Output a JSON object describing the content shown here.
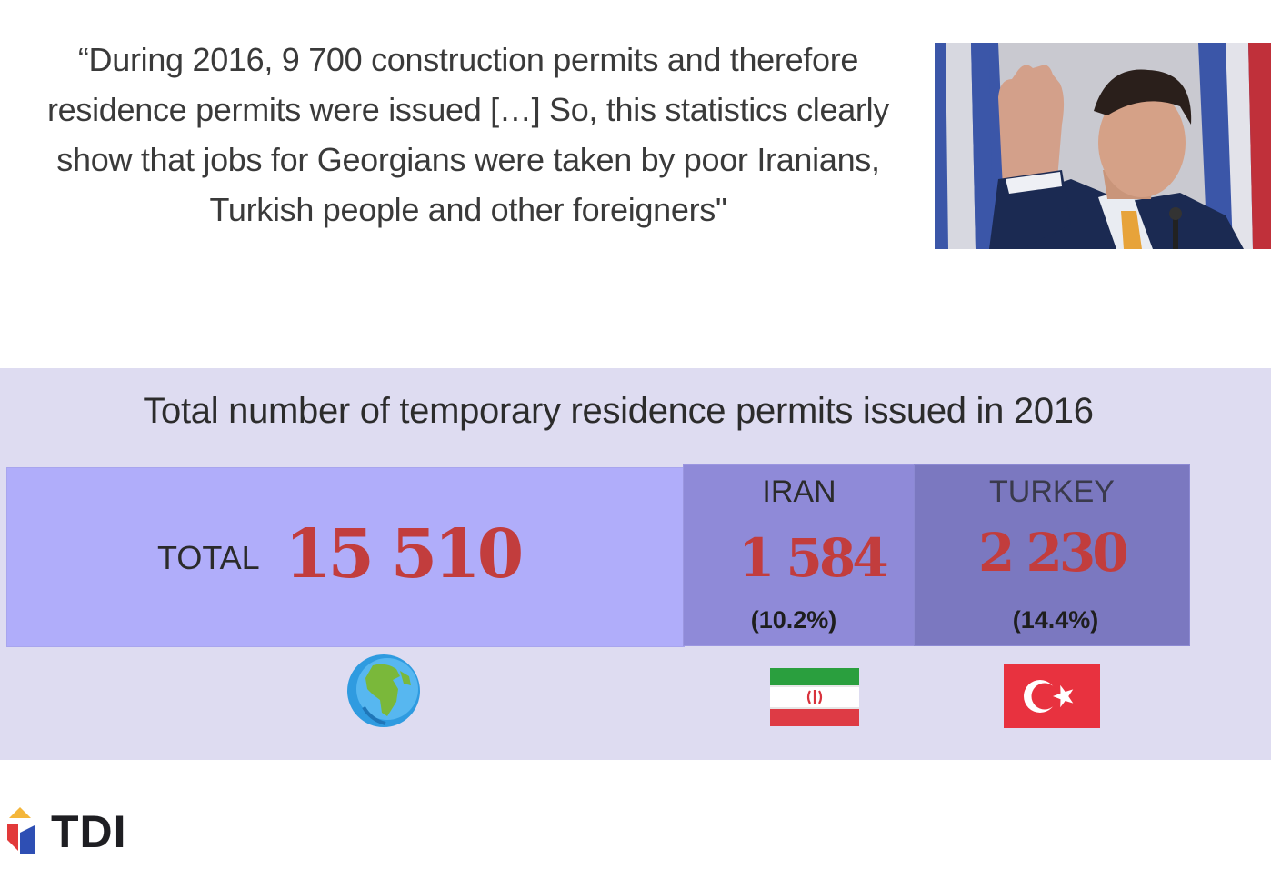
{
  "quote": {
    "lines": [
      "“During 2016, 9 700 construction permits and therefore",
      "residence permits were issued […] So, this statistics clearly",
      "show that jobs for Georgians were taken by poor Iranians,",
      "Turkish people and other foreigners\""
    ]
  },
  "photo": {
    "icon": "person-portrait-photo"
  },
  "chart_data": {
    "type": "table",
    "title": "Total number of temporary residence permits issued in 2016",
    "total": {
      "label": "TOTAL",
      "value_text": "15 510",
      "value": 15510,
      "icon": "globe-icon"
    },
    "countries": [
      {
        "name": "IRAN",
        "value_text": "1 584",
        "value": 1584,
        "share_text": "(10.2%)",
        "share": 10.2,
        "icon": "iran-flag-icon"
      },
      {
        "name": "TURKEY",
        "value_text": "2 230",
        "value": 2230,
        "share_text": "(14.4%)",
        "share": 14.4,
        "icon": "turkey-flag-icon"
      }
    ]
  },
  "logo": {
    "text": "TDI"
  },
  "colors": {
    "panel_bg": "#dedcf1",
    "total_card": "#b0adfa",
    "iran_card": "#8f8ad8",
    "turkey_card": "#7b78c0",
    "value_red": "#c23d3d"
  }
}
